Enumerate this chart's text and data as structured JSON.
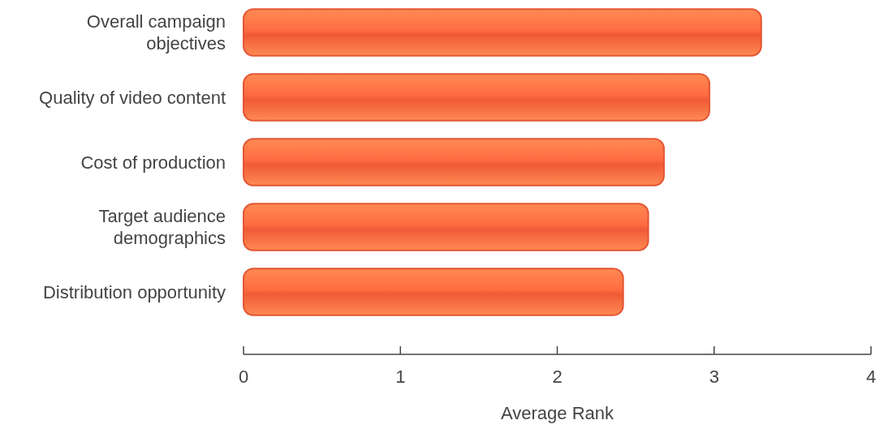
{
  "chart_data": {
    "type": "bar",
    "orientation": "horizontal",
    "xlabel": "Average Rank",
    "categories": [
      "Overall campaign objectives",
      "Quality of video content",
      "Cost of production",
      "Target audience demographics",
      "Distribution opportunity"
    ],
    "values": [
      3.3,
      2.97,
      2.68,
      2.58,
      2.42
    ],
    "color": "#ef5a36",
    "xlim": [
      0,
      4
    ],
    "xticks": [
      0,
      1,
      2,
      3,
      4
    ],
    "grid": false
  }
}
